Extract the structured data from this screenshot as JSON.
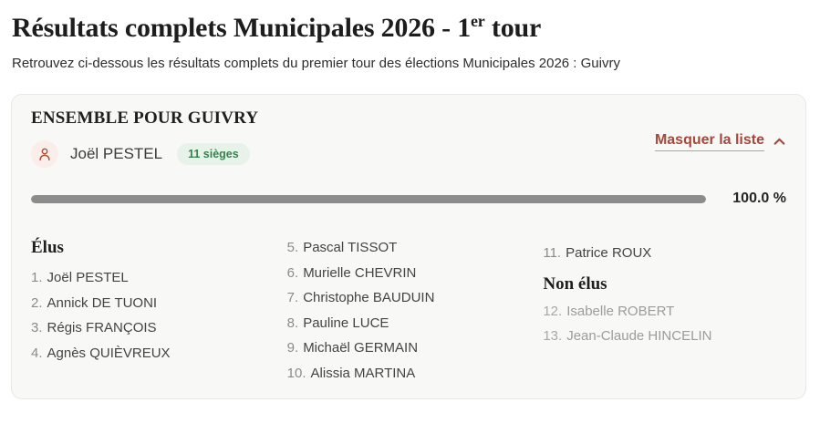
{
  "header": {
    "title": {
      "main": "Résultats complets Municipales 2026 - 1",
      "sup": "er",
      "rest": " tour"
    },
    "subtitle": "Retrouvez ci-dessous les résultats complets du premier tour des élections Municipales 2026 : Guivry"
  },
  "card": {
    "list_name": "ENSEMBLE POUR GUIVRY",
    "leader_name": "Joël PESTEL",
    "seats_badge": "11 sièges",
    "toggle_label": "Masquer la liste",
    "progress": {
      "value_percent": 100.0,
      "label": "100.0 %"
    },
    "elected_heading": "Élus",
    "not_elected_heading": "Non élus",
    "elected": [
      {
        "num": "1.",
        "name": "Joël PESTEL"
      },
      {
        "num": "2.",
        "name": "Annick DE TUONI"
      },
      {
        "num": "3.",
        "name": "Régis FRANÇOIS"
      },
      {
        "num": "4.",
        "name": "Agnès QUIÈVREUX"
      },
      {
        "num": "5.",
        "name": "Pascal TISSOT"
      },
      {
        "num": "6.",
        "name": "Murielle CHEVRIN"
      },
      {
        "num": "7.",
        "name": "Christophe BAUDUIN"
      },
      {
        "num": "8.",
        "name": "Pauline LUCE"
      },
      {
        "num": "9.",
        "name": "Michaël GERMAIN"
      },
      {
        "num": "10.",
        "name": "Alissia MARTINA"
      },
      {
        "num": "11.",
        "name": "Patrice ROUX"
      }
    ],
    "not_elected": [
      {
        "num": "12.",
        "name": "Isabelle ROBERT"
      },
      {
        "num": "13.",
        "name": "Jean-Claude HINCELIN"
      }
    ]
  },
  "icons": {
    "leader": "person-icon",
    "toggle": "chevron-up-icon"
  },
  "colors": {
    "accent_red": "#a5473b",
    "icon_stroke": "#a84b31",
    "icon_bg": "#fbeeea",
    "badge_bg": "#e7f3e9",
    "badge_text": "#37824d",
    "progress_fill": "#8c8c8c",
    "card_bg": "#f8f8f6",
    "muted_text": "#9c9c9c"
  }
}
